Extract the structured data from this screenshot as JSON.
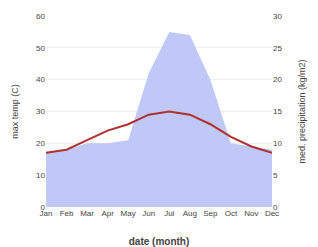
{
  "chart_data": {
    "type": "line",
    "categories": [
      "Jan",
      "Feb",
      "Mar",
      "Apr",
      "May",
      "Jun",
      "Jul",
      "Aug",
      "Sep",
      "Oct",
      "Nov",
      "Dec"
    ],
    "series": [
      {
        "type": "area",
        "axis": "y2",
        "color": "#c0c8f8",
        "values": [
          8.5,
          9,
          10,
          10,
          10.5,
          21,
          27.5,
          27,
          20,
          10,
          9.5,
          9
        ]
      },
      {
        "type": "line",
        "axis": "y",
        "color": "#b03030",
        "values": [
          17,
          18,
          21,
          24,
          26,
          29,
          30,
          29,
          26,
          22,
          19,
          17
        ]
      }
    ],
    "xlabel": "date (month)",
    "ylabel": "max temp (C)",
    "y2label": "med. precipitation (kg/m2)",
    "ylim": [
      0,
      60
    ],
    "yticks": [
      0,
      10,
      20,
      30,
      40,
      50,
      60
    ],
    "y2lim": [
      0,
      30
    ],
    "y2ticks": [
      0,
      5,
      10,
      15,
      20,
      25,
      30
    ],
    "grid": true
  }
}
